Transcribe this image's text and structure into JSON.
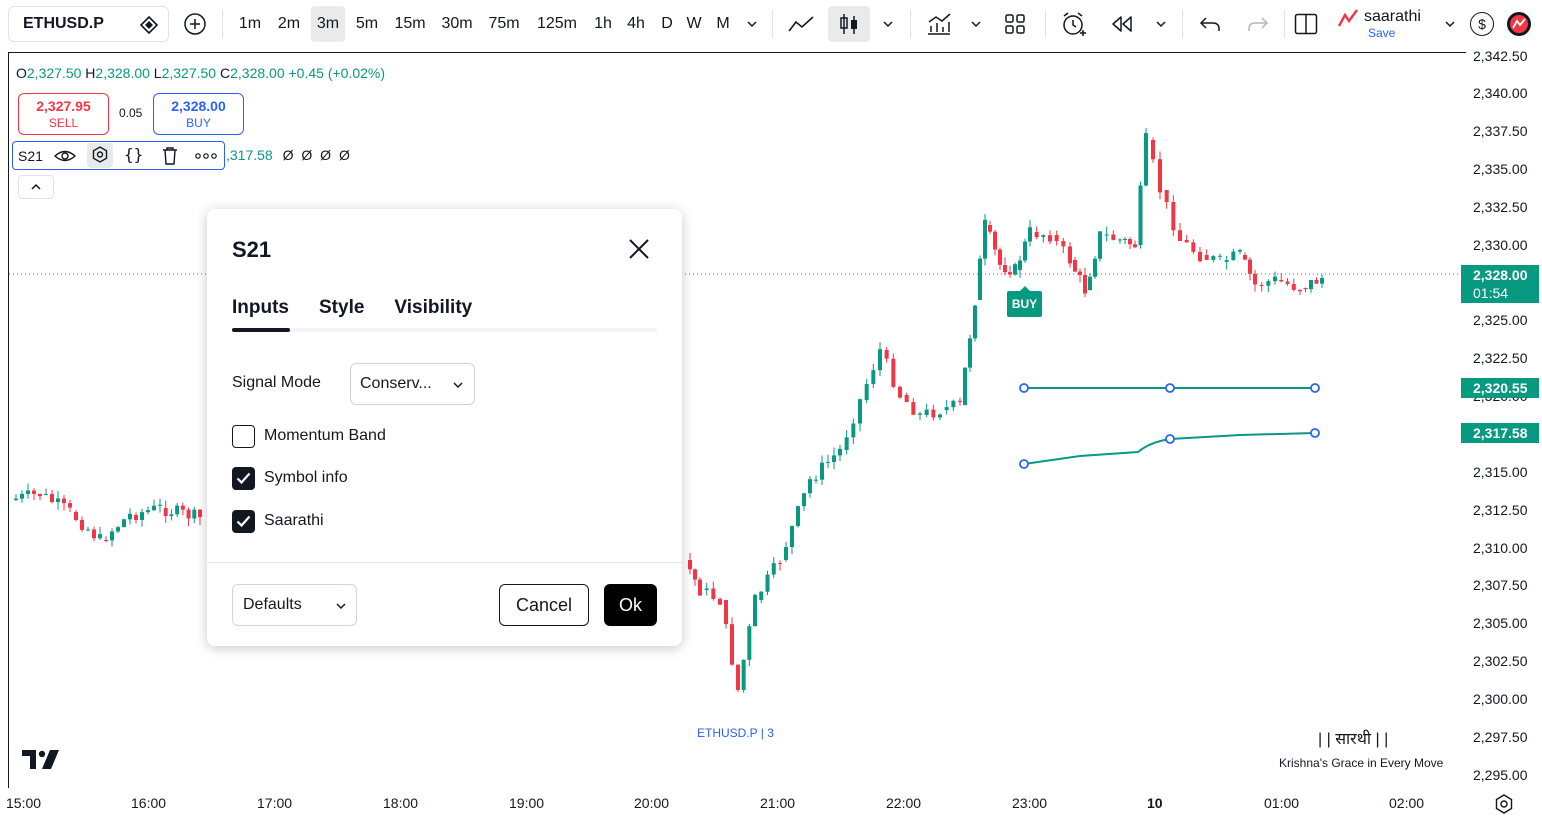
{
  "toolbar": {
    "symbol": "ETHUSD.P",
    "intervals": [
      "1m",
      "2m",
      "3m",
      "5m",
      "15m",
      "30m",
      "75m",
      "125m",
      "1h",
      "4h",
      "D",
      "W",
      "M"
    ],
    "selected_interval": "3m",
    "user_name": "saarathi",
    "save_label": "Save",
    "currency_symbol": "$"
  },
  "legend": {
    "open_key": "O",
    "open": "2,327.50",
    "high_key": "H",
    "high": "2,328.00",
    "low_key": "L",
    "low": "2,327.50",
    "close_key": "C",
    "close": "2,328.00",
    "change": "+0.45 (+0.02%)"
  },
  "quote": {
    "sell_price": "2,327.95",
    "sell_label": "SELL",
    "spread": "0.05",
    "buy_price": "2,328.00",
    "buy_label": "BUY"
  },
  "indicator": {
    "name": "S21",
    "values_text": ",317.58",
    "empty_values": "Ø Ø Ø Ø"
  },
  "dialog": {
    "title": "S21",
    "tabs": [
      "Inputs",
      "Style",
      "Visibility"
    ],
    "active_tab": "Inputs",
    "signal_mode_label": "Signal Mode",
    "signal_mode_value": "Conserv...",
    "checkboxes": [
      {
        "label": "Momentum Band",
        "checked": false
      },
      {
        "label": "Symbol info",
        "checked": true
      },
      {
        "label": "Saarathi",
        "checked": true
      }
    ],
    "defaults_label": "Defaults",
    "cancel_label": "Cancel",
    "ok_label": "Ok"
  },
  "price_axis": [
    "2,342.50",
    "2,340.00",
    "2,337.50",
    "2,335.00",
    "2,332.50",
    "2,330.00",
    "2,325.00",
    "2,322.50",
    "2,320.00",
    "2,315.00",
    "2,312.50",
    "2,310.00",
    "2,307.50",
    "2,305.00",
    "2,302.50",
    "2,300.00",
    "2,297.50",
    "2,295.00"
  ],
  "price_tags": {
    "current_price": "2,328.00",
    "countdown": "01:54",
    "level_upper": "2,320.55",
    "level_lower": "2,317.58"
  },
  "time_axis": [
    "15:00",
    "16:00",
    "17:00",
    "18:00",
    "19:00",
    "20:00",
    "21:00",
    "22:00",
    "23:00",
    "10",
    "01:00",
    "02:00"
  ],
  "chart": {
    "buy_marker": "BUY",
    "symbol_tag": "ETHUSD.P | 3",
    "watermark_title": "| | सारथी | |",
    "watermark_sub": "Krishna's Grace in Every Move"
  },
  "colors": {
    "up": "#089981",
    "down": "#f23645",
    "accent": "#2962ff",
    "text": "#131722"
  }
}
